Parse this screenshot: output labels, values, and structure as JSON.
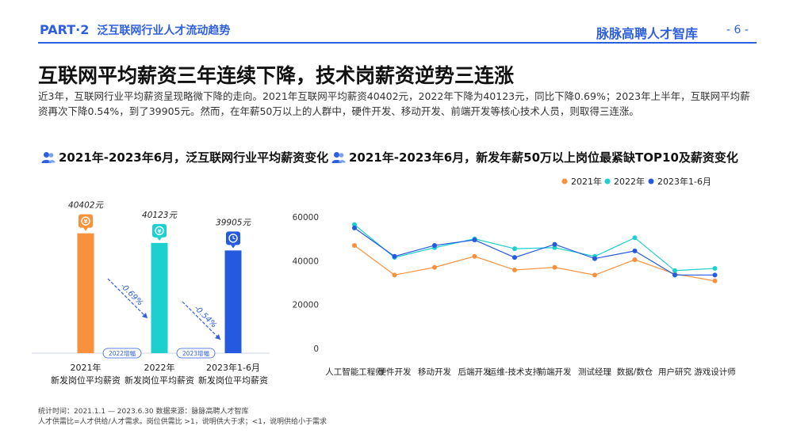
{
  "header": {
    "part": "PART·2",
    "section": "泛互联网行业人才流动趋势",
    "brand": "脉脉高聘人才智库",
    "page": "- 6 -"
  },
  "title": "互联网平均薪资三年连续下降，技术岗薪资逆势三连涨",
  "intro": "近3年，互联网行业平均薪资呈现略微下降的走向。2021年互联网平均薪资40402元，2022年下降为40123元，同比下降0.69%；2023年上半年，互联网平均薪资再次下降0.54%，到了39905元。然而，在年薪50万以上的人群中，硬件开发、移动开发、前端开发等核心技术人员，则取得三连涨。",
  "left_section_title": "2021年-2023年6月，泛互联网行业平均薪资变化",
  "right_section_title": "2021年-2023年6月，新发年薪50万以上岗位最紧缺TOP10及薪资变化",
  "colors": {
    "brand": "#2e5fe0",
    "orange": "#f7913c",
    "cyan": "#1ecfd0",
    "blue": "#2459e0"
  },
  "footer": {
    "line1": "统计时间：2021.1.1 — 2023.6.30   数据来源：脉脉高聘人才智库",
    "line2": "人才供需比=人才供给/人才需求。岗位供需比 >1，说明供大于求；<1，说明供给小于需求"
  },
  "chart_data": [
    {
      "type": "bar",
      "categories": [
        "2021年\n新发岗位平均薪资",
        "2022年\n新发岗位平均薪资",
        "2023年1-6月\n新发岗位平均薪资"
      ],
      "values": [
        40402,
        40123,
        39905
      ],
      "data_labels": [
        "40402元",
        "40123元",
        "39905元"
      ],
      "bar_colors": [
        "#f7913c",
        "#1ecfd0",
        "#2459e0"
      ],
      "icons": [
        "money-icon",
        "money-icon",
        "clock-icon"
      ],
      "changes": [
        {
          "label": "-0.69%",
          "badge": "2022增幅"
        },
        {
          "label": "-0.54%",
          "badge": "2023增幅"
        }
      ]
    },
    {
      "type": "line",
      "categories": [
        "人工智能工程师",
        "硬件开发",
        "移动开发",
        "后端开发",
        "运维-技术支持",
        "前端开发",
        "测试经理",
        "数据/数仓",
        "用户研究",
        "游戏设计师"
      ],
      "ylim": [
        0,
        60000
      ],
      "yticks": [
        0,
        20000,
        40000,
        60000
      ],
      "legend_position": "top-right",
      "series": [
        {
          "name": "2021年",
          "color": "#f7913c",
          "values": [
            47000,
            33500,
            37000,
            42000,
            35800,
            37000,
            33500,
            40500,
            34000,
            30800
          ]
        },
        {
          "name": "2022年",
          "color": "#1ecfd0",
          "values": [
            56500,
            41500,
            46000,
            50000,
            45500,
            46000,
            42000,
            50500,
            35500,
            36500
          ]
        },
        {
          "name": "2023年1-6月",
          "color": "#2459e0",
          "values": [
            55000,
            42000,
            47000,
            49500,
            41500,
            47500,
            41000,
            44500,
            33500,
            33500
          ]
        }
      ]
    }
  ]
}
